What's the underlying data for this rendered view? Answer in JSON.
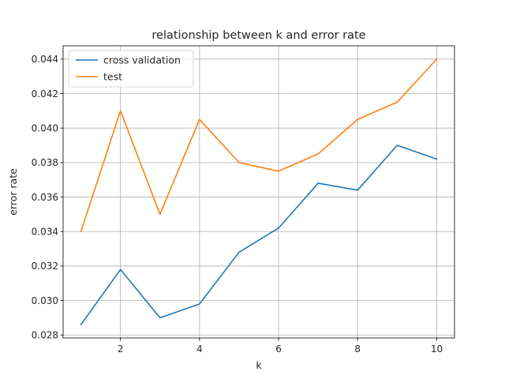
{
  "chart_data": {
    "type": "line",
    "title": "relationship between k and error rate",
    "xlabel": "k",
    "ylabel": "error rate",
    "x": [
      1,
      2,
      3,
      4,
      5,
      6,
      7,
      8,
      9,
      10
    ],
    "series": [
      {
        "name": "cross validation",
        "color": "#1f77b4",
        "values": [
          0.0286,
          0.0318,
          0.029,
          0.0298,
          0.0328,
          0.0342,
          0.0368,
          0.0364,
          0.039,
          0.0382
        ]
      },
      {
        "name": "test",
        "color": "#ff7f0e",
        "values": [
          0.034,
          0.041,
          0.035,
          0.0405,
          0.038,
          0.0375,
          0.0385,
          0.0405,
          0.0415,
          0.044
        ]
      }
    ],
    "xlim": [
      0.55,
      10.45
    ],
    "ylim": [
      0.02783,
      0.04477
    ],
    "x_ticks": [
      2,
      4,
      6,
      8,
      10
    ],
    "x_tick_labels": [
      "2",
      "4",
      "6",
      "8",
      "10"
    ],
    "y_ticks": [
      0.028,
      0.03,
      0.032,
      0.034,
      0.036,
      0.038,
      0.04,
      0.042,
      0.044
    ],
    "y_tick_labels": [
      "0.028",
      "0.030",
      "0.032",
      "0.034",
      "0.036",
      "0.038",
      "0.040",
      "0.042",
      "0.044"
    ],
    "grid": true,
    "legend_position": "top-left"
  }
}
